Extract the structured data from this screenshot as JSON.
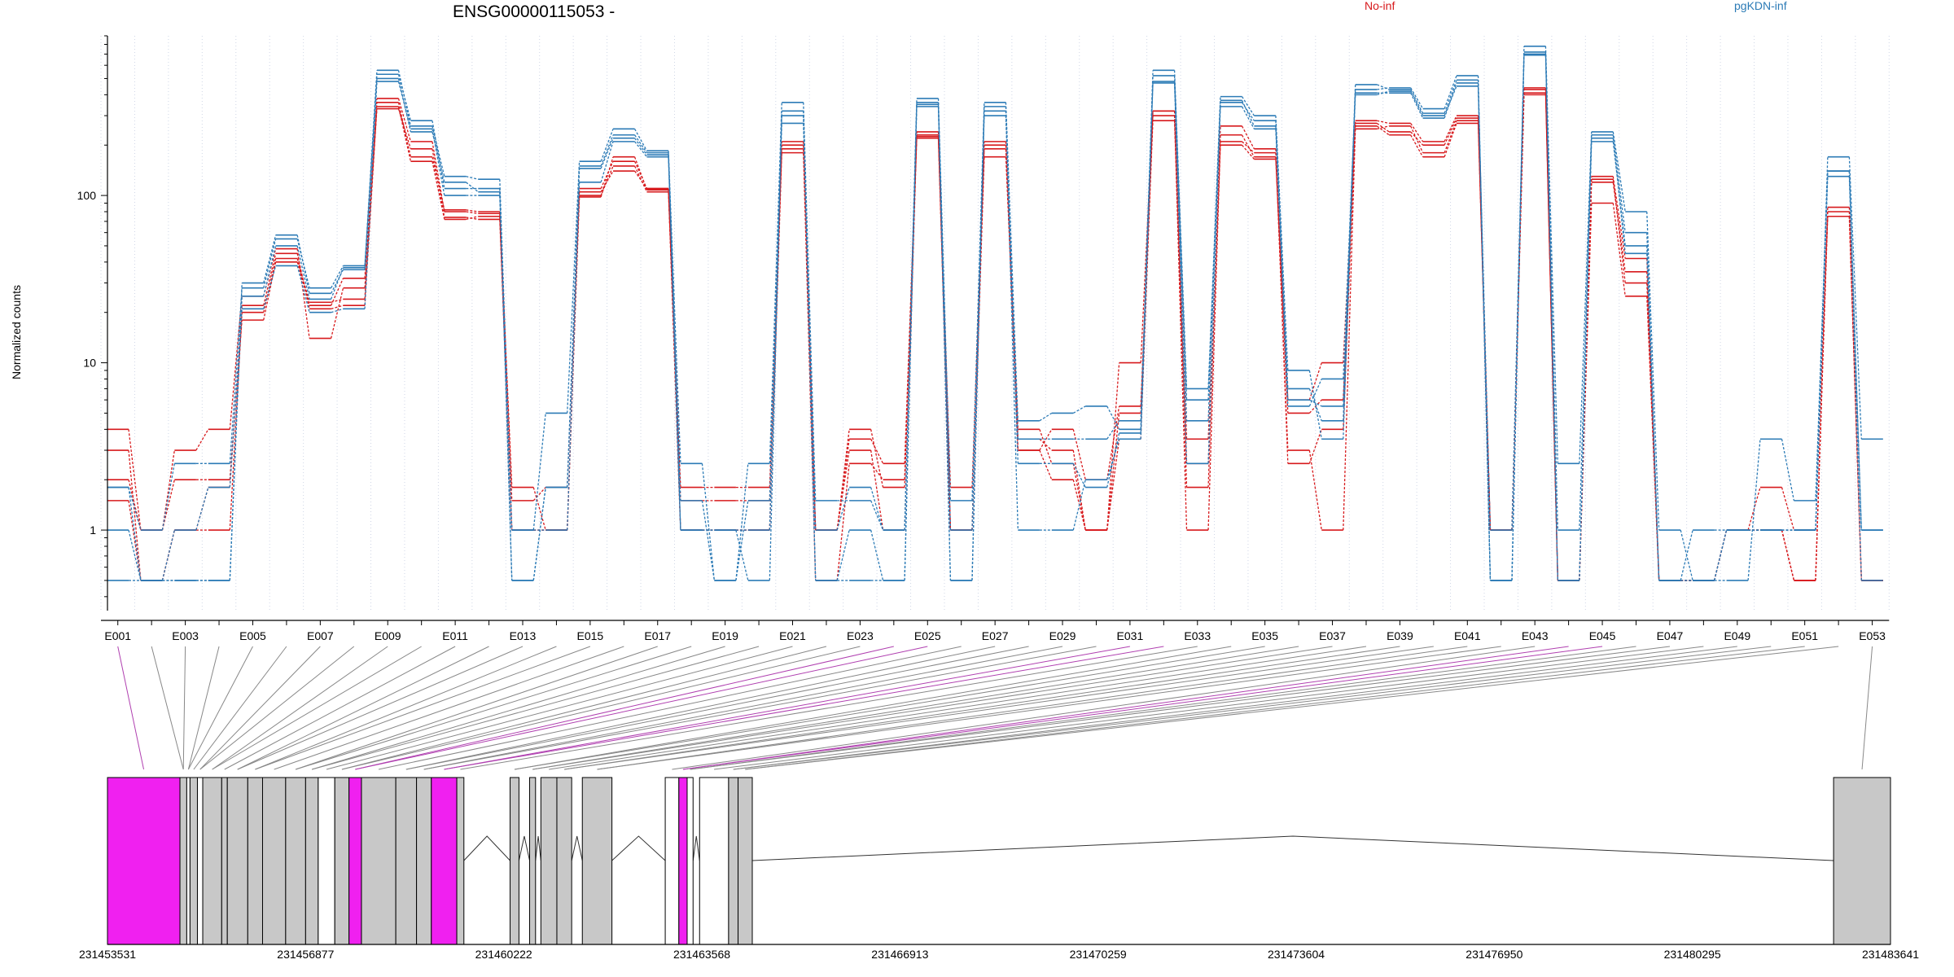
{
  "chart_data": {
    "type": "line",
    "title": "ENSG00000115053 -",
    "xlabel": "",
    "ylabel": "Normalized counts",
    "y_scale": "log",
    "y_ticks": [
      1,
      10,
      100
    ],
    "y_tick_labels": [
      "1",
      "10",
      "100"
    ],
    "ylim": [
      0.33,
      900
    ],
    "grid": "vertical dotted lines at each exon",
    "legend": [
      {
        "name": "No-inf",
        "color": "#d7191c",
        "placement": "top-center-right"
      },
      {
        "name": "pgKDN-inf",
        "color": "#2c7bb6",
        "placement": "top-right"
      }
    ],
    "exons": [
      "E001",
      "E002",
      "E003",
      "E004",
      "E005",
      "E006",
      "E007",
      "E008",
      "E009",
      "E010",
      "E011",
      "E012",
      "E013",
      "E014",
      "E015",
      "E016",
      "E017",
      "E018",
      "E019",
      "E020",
      "E021",
      "E022",
      "E023",
      "E024",
      "E025",
      "E026",
      "E027",
      "E028",
      "E029",
      "E030",
      "E031",
      "E032",
      "E033",
      "E034",
      "E035",
      "E036",
      "E037",
      "E038",
      "E039",
      "E040",
      "E041",
      "E042",
      "E043",
      "E044",
      "E045",
      "E046",
      "E047",
      "E048",
      "E049",
      "E050",
      "E051",
      "E052",
      "E053"
    ],
    "exon_tick_labels": [
      "E001",
      "E003",
      "E005",
      "E007",
      "E009",
      "E011",
      "E013",
      "E015",
      "E017",
      "E019",
      "E021",
      "E023",
      "E025",
      "E027",
      "E029",
      "E031",
      "E033",
      "E035",
      "E037",
      "E039",
      "E041",
      "E043",
      "E045",
      "E047",
      "E049",
      "E051",
      "E053"
    ],
    "series": [
      {
        "name": "No-inf",
        "group": "No-inf",
        "values": [
          3,
          0.5,
          1,
          1,
          20,
          42,
          23,
          24,
          380,
          210,
          80,
          78,
          1.8,
          1,
          100,
          150,
          105,
          1.8,
          1.8,
          1.8,
          190,
          1,
          4,
          1.8,
          230,
          1,
          200,
          3.5,
          3,
          1,
          10,
          320,
          3.5,
          230,
          170,
          6,
          10,
          270,
          240,
          200,
          290,
          1,
          430,
          0.5,
          120,
          35,
          0.5,
          0.5,
          1,
          1,
          0.5,
          80,
          0.5
        ]
      },
      {
        "name": "No-inf",
        "group": "No-inf",
        "values": [
          4,
          1,
          3,
          4,
          25,
          48,
          14,
          28,
          330,
          190,
          74,
          72,
          1,
          1,
          110,
          160,
          110,
          1,
          1,
          1,
          210,
          1,
          3.5,
          2.5,
          220,
          1,
          170,
          4,
          2.5,
          1,
          3.5,
          300,
          1,
          210,
          180,
          3,
          1,
          250,
          260,
          180,
          280,
          1,
          410,
          0.5,
          90,
          25,
          0.5,
          0.5,
          1,
          1,
          0.5,
          75,
          0.5
        ]
      },
      {
        "name": "No-inf",
        "group": "No-inf",
        "values": [
          2,
          1,
          2,
          2,
          18,
          40,
          22,
          32,
          360,
          170,
          82,
          80,
          1.5,
          1.8,
          105,
          140,
          110,
          1,
          1,
          1,
          180,
          0.5,
          2.5,
          2,
          240,
          1,
          210,
          3,
          2,
          1,
          5,
          320,
          1.8,
          260,
          190,
          2.5,
          4,
          280,
          270,
          210,
          300,
          1,
          440,
          0.5,
          130,
          42,
          0.5,
          0.5,
          1,
          1,
          0.5,
          85,
          0.5
        ]
      },
      {
        "name": "No-inf",
        "group": "No-inf",
        "values": [
          1.5,
          0.5,
          1,
          1.8,
          22,
          45,
          21,
          22,
          340,
          160,
          72,
          75,
          1,
          1,
          98,
          170,
          108,
          1.5,
          1.5,
          1.5,
          200,
          1,
          3,
          1,
          225,
          1.8,
          190,
          3,
          4,
          2,
          5.5,
          280,
          2.5,
          200,
          165,
          5,
          6,
          260,
          230,
          170,
          270,
          1,
          400,
          0.5,
          125,
          30,
          0.5,
          0.5,
          1,
          1.8,
          1,
          75,
          0.5
        ]
      },
      {
        "name": "pgKDN-inf",
        "group": "pgKDN-inf",
        "values": [
          1.8,
          1,
          2.5,
          2.5,
          28,
          55,
          28,
          38,
          560,
          260,
          130,
          125,
          1,
          5,
          160,
          250,
          185,
          2.5,
          0.5,
          2.5,
          360,
          1.5,
          1.5,
          1,
          380,
          1.5,
          360,
          4.5,
          5,
          5.5,
          4,
          560,
          7,
          390,
          300,
          9,
          3.5,
          430,
          440,
          330,
          520,
          0.5,
          780,
          2.5,
          240,
          80,
          1,
          0.5,
          1,
          1,
          1,
          170,
          3.5
        ]
      },
      {
        "name": "pgKDN-inf",
        "group": "pgKDN-inf",
        "values": [
          1,
          0.5,
          0.5,
          0.5,
          30,
          58,
          26,
          36,
          530,
          280,
          110,
          110,
          0.5,
          1.8,
          150,
          230,
          180,
          1.5,
          0.5,
          1.5,
          300,
          0.5,
          0.5,
          0.5,
          360,
          0.5,
          340,
          3.5,
          3.5,
          3.5,
          4.5,
          520,
          6,
          360,
          280,
          7,
          4.5,
          460,
          430,
          310,
          490,
          0.5,
          720,
          0.5,
          230,
          60,
          0.5,
          0.5,
          0.5,
          3.5,
          1.5,
          140,
          1
        ]
      },
      {
        "name": "pgKDN-inf",
        "group": "pgKDN-inf",
        "values": [
          0.5,
          0.5,
          0.5,
          0.5,
          25,
          50,
          24,
          37,
          500,
          240,
          120,
          105,
          0.5,
          1.8,
          145,
          220,
          175,
          1,
          1,
          0.5,
          320,
          0.5,
          1,
          0.5,
          340,
          0.5,
          320,
          1,
          1,
          2,
          3.5,
          480,
          4.5,
          370,
          260,
          6,
          5.5,
          410,
          410,
          290,
          470,
          0.5,
          690,
          0.5,
          210,
          50,
          0.5,
          0.5,
          1,
          1,
          1,
          140,
          0.5
        ]
      },
      {
        "name": "pgKDN-inf",
        "group": "pgKDN-inf",
        "values": [
          1.8,
          0.5,
          1,
          1.8,
          21,
          38,
          20,
          21,
          480,
          250,
          100,
          100,
          1,
          1,
          120,
          210,
          170,
          1,
          1,
          1,
          270,
          1,
          1.8,
          1,
          350,
          1,
          300,
          2.5,
          2.5,
          1.8,
          3.8,
          470,
          2.5,
          340,
          250,
          5.5,
          8,
          400,
          420,
          300,
          450,
          1,
          700,
          1,
          220,
          45,
          0.5,
          1,
          1,
          1,
          1,
          130,
          1
        ]
      }
    ],
    "gene_model": {
      "start_coord": 231453531,
      "end_coord": 231483641,
      "coord_tick_labels": [
        "231453531",
        "231456877",
        "231460222",
        "231463568",
        "231466913",
        "231470259",
        "231473604",
        "231476950",
        "231480295",
        "231483641"
      ],
      "exon_blocks": [
        {
          "start": 231453531,
          "end": 231454755,
          "fill": "#f020f0"
        },
        {
          "start": 231454755,
          "end": 231454870,
          "fill": "#c8c8c8"
        },
        {
          "start": 231454870,
          "end": 231454925,
          "fill": "#ffffff"
        },
        {
          "start": 231454925,
          "end": 231455050,
          "fill": "#c8c8c8"
        },
        {
          "start": 231455050,
          "end": 231455140,
          "fill": "#ffffff"
        },
        {
          "start": 231455140,
          "end": 231455460,
          "fill": "#c8c8c8"
        },
        {
          "start": 231455460,
          "end": 231455555,
          "fill": "#c8c8c8"
        },
        {
          "start": 231455555,
          "end": 231455900,
          "fill": "#c8c8c8"
        },
        {
          "start": 231455900,
          "end": 231456150,
          "fill": "#c8c8c8"
        },
        {
          "start": 231456150,
          "end": 231456540,
          "fill": "#c8c8c8"
        },
        {
          "start": 231456540,
          "end": 231456877,
          "fill": "#c8c8c8"
        },
        {
          "start": 231456877,
          "end": 231457090,
          "fill": "#c8c8c8"
        },
        {
          "start": 231457090,
          "end": 231457370,
          "fill": "#ffffff"
        },
        {
          "start": 231457370,
          "end": 231457610,
          "fill": "#c8c8c8"
        },
        {
          "start": 231457610,
          "end": 231457820,
          "fill": "#f020f0"
        },
        {
          "start": 231457820,
          "end": 231458400,
          "fill": "#c8c8c8"
        },
        {
          "start": 231458400,
          "end": 231458750,
          "fill": "#c8c8c8"
        },
        {
          "start": 231458750,
          "end": 231459000,
          "fill": "#c8c8c8"
        },
        {
          "start": 231459000,
          "end": 231459430,
          "fill": "#f020f0"
        },
        {
          "start": 231459430,
          "end": 231459550,
          "fill": "#c8c8c8"
        },
        {
          "start": 231460330,
          "end": 231460480,
          "fill": "#c8c8c8"
        },
        {
          "start": 231460660,
          "end": 231460760,
          "fill": "#c8c8c8"
        },
        {
          "start": 231460850,
          "end": 231461120,
          "fill": "#c8c8c8"
        },
        {
          "start": 231461120,
          "end": 231461370,
          "fill": "#c8c8c8"
        },
        {
          "start": 231461550,
          "end": 231462050,
          "fill": "#c8c8c8"
        },
        {
          "start": 231462950,
          "end": 231463180,
          "fill": "#ffffff"
        },
        {
          "start": 231463180,
          "end": 231463320,
          "fill": "#f020f0"
        },
        {
          "start": 231463320,
          "end": 231463420,
          "fill": "#ffffff"
        },
        {
          "start": 231463530,
          "end": 231464020,
          "fill": "#ffffff"
        },
        {
          "start": 231464020,
          "end": 231464180,
          "fill": "#c8c8c8"
        },
        {
          "start": 231464180,
          "end": 231464420,
          "fill": "#c8c8c8"
        },
        {
          "start": 231482680,
          "end": 231483641,
          "fill": "#c8c8c8"
        }
      ]
    }
  }
}
